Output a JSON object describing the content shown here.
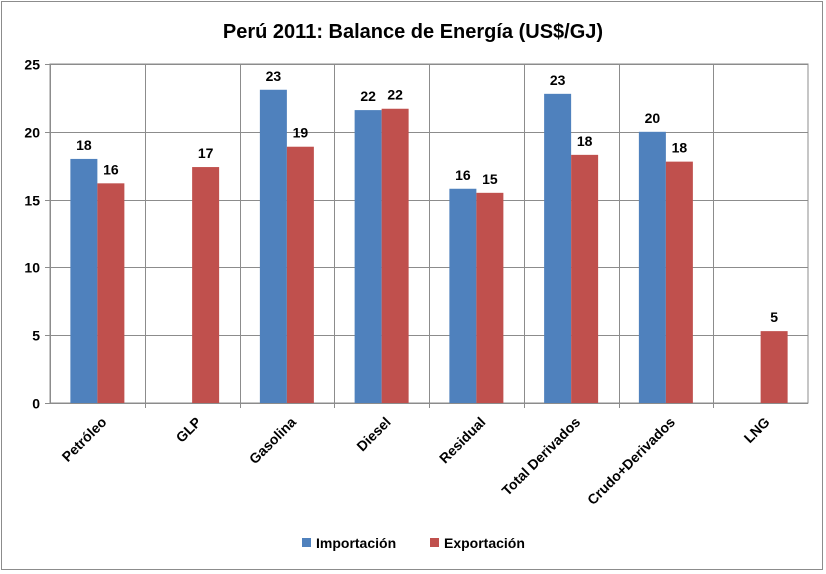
{
  "chart_data": {
    "type": "bar",
    "title": "Perú 2011: Balance de Energía (US$/GJ)",
    "xlabel": "",
    "ylabel": "",
    "ylim": [
      0,
      25
    ],
    "yticks": [
      0,
      5,
      10,
      15,
      20,
      25
    ],
    "grid": true,
    "legend_position": "bottom",
    "categories": [
      "Petróleo",
      "GLP",
      "Gasolina",
      "Diesel",
      "Residual",
      "Total Derivados",
      "Crudo+Derivados",
      "LNG"
    ],
    "series": [
      {
        "name": "Importación",
        "color": "#4f81bd",
        "values": [
          18.0,
          null,
          23.1,
          21.6,
          15.8,
          22.8,
          20.0,
          null
        ],
        "labels": [
          "18",
          "",
          "23",
          "22",
          "16",
          "23",
          "20",
          ""
        ]
      },
      {
        "name": "Exportación",
        "color": "#c0504d",
        "values": [
          16.2,
          17.4,
          18.9,
          21.7,
          15.5,
          18.3,
          17.8,
          5.3
        ],
        "labels": [
          "16",
          "17",
          "19",
          "22",
          "15",
          "18",
          "18",
          "5"
        ]
      }
    ]
  }
}
